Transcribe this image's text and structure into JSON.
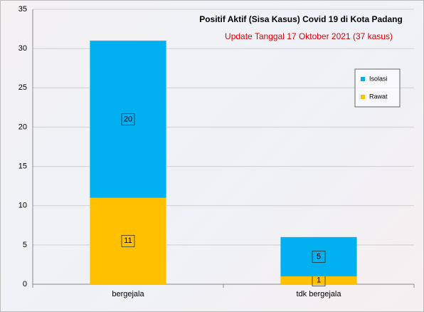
{
  "chart_data": {
    "type": "bar",
    "stacked": true,
    "title": "Positif Aktif  (Sisa Kasus) Covid 19 di Kota Padang",
    "subtitle": "Update Tanggal  17  Oktober  2021 (37  kasus)",
    "categories": [
      "bergejala",
      "tdk bergejala"
    ],
    "series": [
      {
        "name": "Rawat",
        "color": "#ffc000",
        "values": [
          11,
          1
        ]
      },
      {
        "name": "Isolasi",
        "color": "#00b0f0",
        "values": [
          20,
          5
        ]
      }
    ],
    "ylim": [
      0,
      35
    ],
    "yticks": [
      0,
      5,
      10,
      15,
      20,
      25,
      30,
      35
    ],
    "grid": true,
    "legend": "right"
  }
}
